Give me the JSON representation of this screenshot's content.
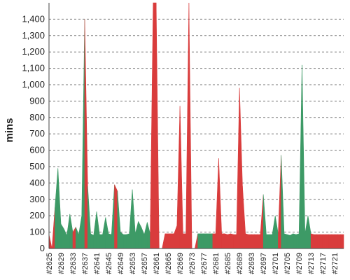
{
  "chart_data": {
    "type": "area",
    "title": "",
    "xlabel": "",
    "ylabel": "mins",
    "ylim": [
      0,
      1500
    ],
    "grid": true,
    "legend": "none",
    "y_ticks": [
      "0",
      "100",
      "200",
      "300",
      "400",
      "500",
      "600",
      "700",
      "800",
      "900",
      "1,000",
      "1,100",
      "1,200",
      "1,300",
      "1,400"
    ],
    "x_ticks": [
      "#2625",
      "#2629",
      "#2633",
      "#2637",
      "#2641",
      "#2645",
      "#2649",
      "#2653",
      "#2657",
      "#2661",
      "#2665",
      "#2669",
      "#2673",
      "#2677",
      "#2681",
      "#2685",
      "#2689",
      "#2693",
      "#2697",
      "#2701",
      "#2705",
      "#2709",
      "#2713",
      "#2717",
      "#2721"
    ],
    "x_start": 2625,
    "x_end": 2724,
    "colors": {
      "pass": "#3d9a66",
      "fail": "#d93c3c"
    },
    "points": [
      {
        "x": 2625,
        "y": 85,
        "s": "fail"
      },
      {
        "x": 2626,
        "y": 0,
        "s": "fail"
      },
      {
        "x": 2627,
        "y": 250,
        "s": "fail"
      },
      {
        "x": 2628,
        "y": 490,
        "s": "pass"
      },
      {
        "x": 2629,
        "y": 150,
        "s": "pass"
      },
      {
        "x": 2630,
        "y": 120,
        "s": "pass"
      },
      {
        "x": 2631,
        "y": 80,
        "s": "pass"
      },
      {
        "x": 2632,
        "y": 210,
        "s": "pass"
      },
      {
        "x": 2633,
        "y": 100,
        "s": "pass"
      },
      {
        "x": 2634,
        "y": 130,
        "s": "fail"
      },
      {
        "x": 2635,
        "y": 85,
        "s": "pass"
      },
      {
        "x": 2636,
        "y": 200,
        "s": "pass"
      },
      {
        "x": 2637,
        "y": 1400,
        "s": "pass"
      },
      {
        "x": 2638,
        "y": 380,
        "s": "fail"
      },
      {
        "x": 2639,
        "y": 90,
        "s": "pass"
      },
      {
        "x": 2640,
        "y": 80,
        "s": "pass"
      },
      {
        "x": 2641,
        "y": 225,
        "s": "pass"
      },
      {
        "x": 2642,
        "y": 85,
        "s": "pass"
      },
      {
        "x": 2643,
        "y": 85,
        "s": "pass"
      },
      {
        "x": 2644,
        "y": 190,
        "s": "pass"
      },
      {
        "x": 2645,
        "y": 90,
        "s": "pass"
      },
      {
        "x": 2646,
        "y": 85,
        "s": "pass"
      },
      {
        "x": 2647,
        "y": 390,
        "s": "pass"
      },
      {
        "x": 2648,
        "y": 350,
        "s": "fail"
      },
      {
        "x": 2649,
        "y": 100,
        "s": "pass"
      },
      {
        "x": 2650,
        "y": 85,
        "s": "pass"
      },
      {
        "x": 2651,
        "y": 85,
        "s": "pass"
      },
      {
        "x": 2652,
        "y": 90,
        "s": "pass"
      },
      {
        "x": 2653,
        "y": 360,
        "s": "pass"
      },
      {
        "x": 2654,
        "y": 90,
        "s": "pass"
      },
      {
        "x": 2655,
        "y": 165,
        "s": "pass"
      },
      {
        "x": 2656,
        "y": 130,
        "s": "pass"
      },
      {
        "x": 2657,
        "y": 85,
        "s": "pass"
      },
      {
        "x": 2658,
        "y": 160,
        "s": "pass"
      },
      {
        "x": 2659,
        "y": 90,
        "s": "pass"
      },
      {
        "x": 2660,
        "y": 1500,
        "s": "fail"
      },
      {
        "x": 2661,
        "y": 1500,
        "s": "fail"
      },
      {
        "x": 2662,
        "y": 0,
        "s": "fail"
      },
      {
        "x": 2663,
        "y": 0,
        "s": "fail"
      },
      {
        "x": 2664,
        "y": 90,
        "s": "fail"
      },
      {
        "x": 2665,
        "y": 90,
        "s": "fail"
      },
      {
        "x": 2666,
        "y": 90,
        "s": "fail"
      },
      {
        "x": 2667,
        "y": 90,
        "s": "fail"
      },
      {
        "x": 2668,
        "y": 140,
        "s": "fail"
      },
      {
        "x": 2669,
        "y": 870,
        "s": "fail"
      },
      {
        "x": 2670,
        "y": 90,
        "s": "fail"
      },
      {
        "x": 2671,
        "y": 90,
        "s": "fail"
      },
      {
        "x": 2672,
        "y": 1500,
        "s": "fail"
      },
      {
        "x": 2673,
        "y": 0,
        "s": "fail"
      },
      {
        "x": 2674,
        "y": 0,
        "s": "fail"
      },
      {
        "x": 2675,
        "y": 90,
        "s": "fail"
      },
      {
        "x": 2676,
        "y": 90,
        "s": "pass"
      },
      {
        "x": 2677,
        "y": 90,
        "s": "pass"
      },
      {
        "x": 2678,
        "y": 90,
        "s": "pass"
      },
      {
        "x": 2679,
        "y": 90,
        "s": "pass"
      },
      {
        "x": 2680,
        "y": 90,
        "s": "pass"
      },
      {
        "x": 2681,
        "y": 90,
        "s": "fail"
      },
      {
        "x": 2682,
        "y": 550,
        "s": "fail"
      },
      {
        "x": 2683,
        "y": 90,
        "s": "fail"
      },
      {
        "x": 2684,
        "y": 90,
        "s": "fail"
      },
      {
        "x": 2685,
        "y": 85,
        "s": "fail"
      },
      {
        "x": 2686,
        "y": 90,
        "s": "fail"
      },
      {
        "x": 2687,
        "y": 85,
        "s": "fail"
      },
      {
        "x": 2688,
        "y": 85,
        "s": "fail"
      },
      {
        "x": 2689,
        "y": 980,
        "s": "fail"
      },
      {
        "x": 2690,
        "y": 380,
        "s": "fail"
      },
      {
        "x": 2691,
        "y": 90,
        "s": "fail"
      },
      {
        "x": 2692,
        "y": 85,
        "s": "fail"
      },
      {
        "x": 2693,
        "y": 85,
        "s": "fail"
      },
      {
        "x": 2694,
        "y": 85,
        "s": "fail"
      },
      {
        "x": 2695,
        "y": 85,
        "s": "fail"
      },
      {
        "x": 2696,
        "y": 85,
        "s": "fail"
      },
      {
        "x": 2697,
        "y": 330,
        "s": "fail"
      },
      {
        "x": 2698,
        "y": 85,
        "s": "pass"
      },
      {
        "x": 2699,
        "y": 85,
        "s": "pass"
      },
      {
        "x": 2700,
        "y": 85,
        "s": "pass"
      },
      {
        "x": 2701,
        "y": 200,
        "s": "pass"
      },
      {
        "x": 2702,
        "y": 90,
        "s": "pass"
      },
      {
        "x": 2703,
        "y": 570,
        "s": "fail"
      },
      {
        "x": 2704,
        "y": 90,
        "s": "pass"
      },
      {
        "x": 2705,
        "y": 85,
        "s": "pass"
      },
      {
        "x": 2706,
        "y": 80,
        "s": "pass"
      },
      {
        "x": 2707,
        "y": 90,
        "s": "pass"
      },
      {
        "x": 2708,
        "y": 85,
        "s": "pass"
      },
      {
        "x": 2709,
        "y": 90,
        "s": "pass"
      },
      {
        "x": 2710,
        "y": 1120,
        "s": "pass"
      },
      {
        "x": 2711,
        "y": 90,
        "s": "pass"
      },
      {
        "x": 2712,
        "y": 200,
        "s": "pass"
      },
      {
        "x": 2713,
        "y": 90,
        "s": "pass"
      },
      {
        "x": 2714,
        "y": 85,
        "s": "fail"
      },
      {
        "x": 2715,
        "y": 85,
        "s": "fail"
      },
      {
        "x": 2716,
        "y": 85,
        "s": "fail"
      },
      {
        "x": 2717,
        "y": 85,
        "s": "fail"
      },
      {
        "x": 2718,
        "y": 85,
        "s": "fail"
      },
      {
        "x": 2719,
        "y": 85,
        "s": "fail"
      },
      {
        "x": 2720,
        "y": 85,
        "s": "fail"
      },
      {
        "x": 2721,
        "y": 85,
        "s": "fail"
      },
      {
        "x": 2722,
        "y": 85,
        "s": "fail"
      },
      {
        "x": 2723,
        "y": 85,
        "s": "fail"
      },
      {
        "x": 2724,
        "y": 85,
        "s": "fail"
      }
    ]
  }
}
